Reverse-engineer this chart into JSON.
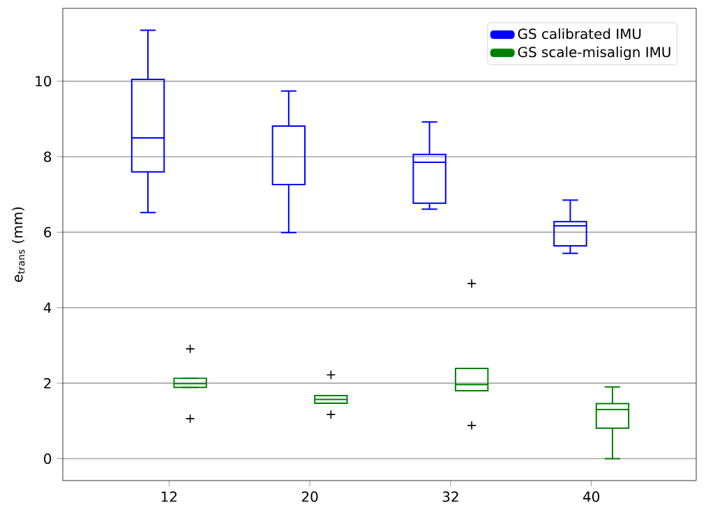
{
  "chart_data": {
    "type": "box",
    "ylabel": "e$_{trans}$ (mm)",
    "categories": [
      "12",
      "20",
      "32",
      "40"
    ],
    "series": [
      {
        "name": "GS calibrated IMU",
        "color": "#0000ff",
        "boxes": [
          {
            "low": 6.52,
            "q1": 7.6,
            "median": 8.5,
            "q3": 10.05,
            "high": 11.35
          },
          {
            "low": 5.99,
            "q1": 7.26,
            "median": 8.81,
            "q3": 8.81,
            "high": 9.74
          },
          {
            "low": 6.61,
            "q1": 6.77,
            "median": 7.85,
            "q3": 8.06,
            "high": 8.92
          },
          {
            "low": 5.44,
            "q1": 5.64,
            "median": 6.17,
            "q3": 6.28,
            "high": 6.85
          }
        ]
      },
      {
        "name": "GS scale-misalign IMU",
        "color": "#008000",
        "boxes": [
          {
            "low": 1.89,
            "q1": 1.89,
            "median": 1.99,
            "q3": 2.13,
            "high": 2.13,
            "outliers": [
              2.91,
              1.06
            ]
          },
          {
            "low": 1.47,
            "q1": 1.47,
            "median": 1.57,
            "q3": 1.67,
            "high": 1.67,
            "outliers": [
              2.22,
              1.17
            ]
          },
          {
            "low": 1.8,
            "q1": 1.8,
            "median": 1.96,
            "q3": 2.39,
            "high": 2.39,
            "outliers": [
              4.64,
              0.88
            ]
          },
          {
            "low": 0.0,
            "q1": 0.81,
            "median": 1.3,
            "q3": 1.46,
            "high": 1.9
          }
        ]
      }
    ],
    "ylim": [
      -0.58,
      11.93
    ],
    "yticks": [
      0,
      2,
      4,
      6,
      8,
      10
    ],
    "grid": "y",
    "legend": "top right"
  }
}
